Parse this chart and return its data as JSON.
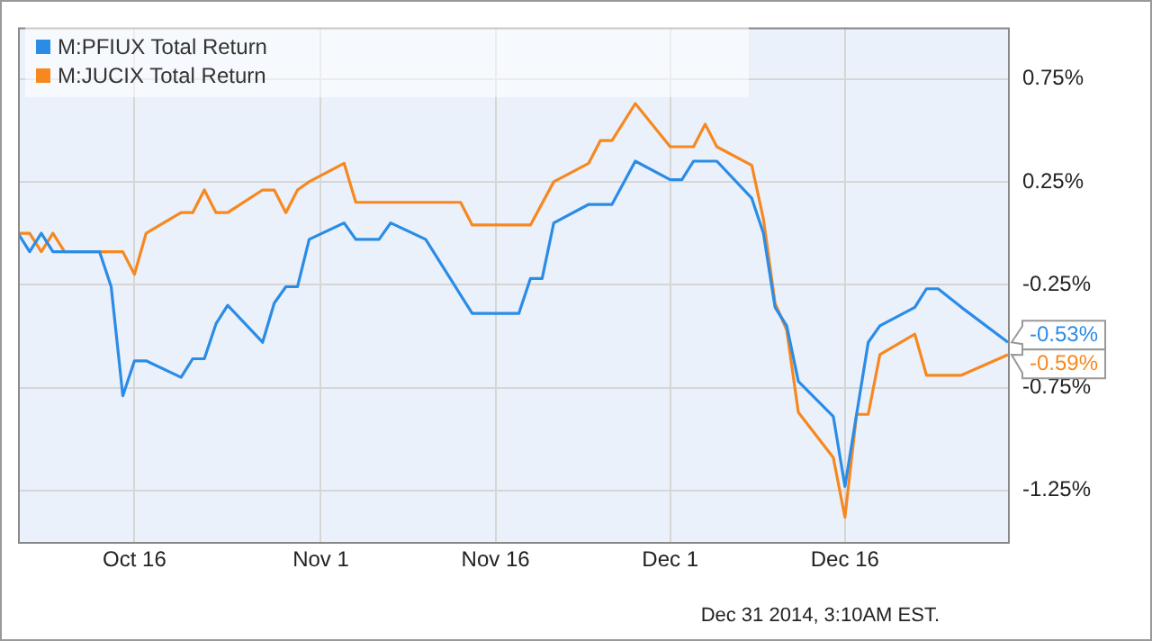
{
  "chart_data": {
    "type": "line",
    "series": [
      {
        "name": "M:PFIUX Total Return",
        "color": "#2b8ce6",
        "x": [
          "2014-10-06",
          "2014-10-07",
          "2014-10-08",
          "2014-10-09",
          "2014-10-13",
          "2014-10-14",
          "2014-10-15",
          "2014-10-16",
          "2014-10-17",
          "2014-10-20",
          "2014-10-21",
          "2014-10-22",
          "2014-10-23",
          "2014-10-24",
          "2014-10-27",
          "2014-10-28",
          "2014-10-29",
          "2014-10-30",
          "2014-10-31",
          "2014-11-03",
          "2014-11-04",
          "2014-11-06",
          "2014-11-07",
          "2014-11-10",
          "2014-11-14",
          "2014-11-18",
          "2014-11-19",
          "2014-11-20",
          "2014-11-21",
          "2014-11-24",
          "2014-11-26",
          "2014-11-28",
          "2014-12-01",
          "2014-12-02",
          "2014-12-03",
          "2014-12-05",
          "2014-12-08",
          "2014-12-09",
          "2014-12-10",
          "2014-12-11",
          "2014-12-12",
          "2014-12-15",
          "2014-12-16",
          "2014-12-18",
          "2014-12-19",
          "2014-12-22",
          "2014-12-23",
          "2014-12-24",
          "2014-12-26",
          "2014-12-30"
        ],
        "values": [
          0,
          -0.09,
          0,
          -0.09,
          -0.09,
          -0.26,
          -0.79,
          -0.62,
          -0.62,
          -0.7,
          -0.61,
          -0.61,
          -0.44,
          -0.35,
          -0.53,
          -0.34,
          -0.26,
          -0.26,
          -0.03,
          0.05,
          -0.03,
          -0.03,
          0.05,
          -0.03,
          -0.39,
          -0.39,
          -0.22,
          -0.22,
          0.05,
          0.14,
          0.14,
          0.35,
          0.26,
          0.26,
          0.35,
          0.35,
          0.17,
          0,
          -0.36,
          -0.45,
          -0.72,
          -0.89,
          -1.23,
          -0.53,
          -0.45,
          -0.36,
          -0.27,
          -0.27,
          -0.36,
          -0.53
        ],
        "value_labels": [
          null,
          null,
          null,
          null,
          null,
          null,
          null,
          null,
          null,
          null,
          null,
          null,
          null,
          null,
          null,
          null,
          null,
          null,
          null,
          null,
          null,
          null,
          null,
          null,
          null,
          null,
          null,
          null,
          null,
          null,
          null,
          null,
          null,
          null,
          null,
          null,
          null,
          null,
          null,
          null,
          null,
          null,
          null,
          null,
          null,
          null,
          null,
          null,
          null,
          "-0.53%"
        ]
      },
      {
        "name": "M:JUCIX Total Return",
        "color": "#f7881f",
        "x": [
          "2014-10-06",
          "2014-10-07",
          "2014-10-08",
          "2014-10-09",
          "2014-10-10",
          "2014-10-15",
          "2014-10-16",
          "2014-10-17",
          "2014-10-20",
          "2014-10-21",
          "2014-10-22",
          "2014-10-23",
          "2014-10-24",
          "2014-10-27",
          "2014-10-28",
          "2014-10-29",
          "2014-10-30",
          "2014-10-31",
          "2014-11-03",
          "2014-11-04",
          "2014-11-13",
          "2014-11-14",
          "2014-11-19",
          "2014-11-21",
          "2014-11-24",
          "2014-11-25",
          "2014-11-26",
          "2014-11-28",
          "2014-12-01",
          "2014-12-03",
          "2014-12-04",
          "2014-12-05",
          "2014-12-08",
          "2014-12-09",
          "2014-12-10",
          "2014-12-11",
          "2014-12-12",
          "2014-12-15",
          "2014-12-16",
          "2014-12-17",
          "2014-12-18",
          "2014-12-19",
          "2014-12-22",
          "2014-12-23",
          "2014-12-26",
          "2014-12-30"
        ],
        "values": [
          0,
          0,
          -0.09,
          0,
          -0.09,
          -0.09,
          -0.2,
          0,
          0.1,
          0.1,
          0.21,
          0.1,
          0.1,
          0.21,
          0.21,
          0.1,
          0.21,
          0.25,
          0.34,
          0.15,
          0.15,
          0.04,
          0.04,
          0.25,
          0.34,
          0.45,
          0.45,
          0.63,
          0.42,
          0.42,
          0.53,
          0.42,
          0.33,
          0.07,
          -0.34,
          -0.47,
          -0.87,
          -1.09,
          -1.38,
          -0.88,
          -0.88,
          -0.59,
          -0.49,
          -0.69,
          -0.69,
          -0.59
        ],
        "value_labels": [
          null,
          null,
          null,
          null,
          null,
          null,
          null,
          null,
          null,
          null,
          null,
          null,
          null,
          null,
          null,
          null,
          null,
          null,
          null,
          null,
          null,
          null,
          null,
          null,
          null,
          null,
          null,
          null,
          null,
          null,
          null,
          null,
          null,
          null,
          null,
          null,
          null,
          null,
          null,
          null,
          null,
          null,
          null,
          null,
          null,
          "-0.59%"
        ]
      }
    ],
    "xlim": [
      "2014-10-06",
      "2014-12-30"
    ],
    "xticks": [
      {
        "value": "2014-10-16",
        "label": "Oct 16"
      },
      {
        "value": "2014-11-01",
        "label": "Nov 1"
      },
      {
        "value": "2014-11-16",
        "label": "Nov 16"
      },
      {
        "value": "2014-12-01",
        "label": "Dec 1"
      },
      {
        "value": "2014-12-16",
        "label": "Dec 16"
      }
    ],
    "ylim": [
      -1.5,
      1.0
    ],
    "yticks": [
      {
        "value": -1.25,
        "label": "-1.25%"
      },
      {
        "value": -0.75,
        "label": "-0.75%"
      },
      {
        "value": -0.25,
        "label": "-0.25%"
      },
      {
        "value": 0.25,
        "label": "0.25%"
      },
      {
        "value": 0.75,
        "label": "0.75%"
      }
    ],
    "grid": true,
    "legend": "top left",
    "marker": "none",
    "line_style": "solid",
    "annotations": [
      "Dec 31 2014, 3:10AM EST."
    ]
  }
}
